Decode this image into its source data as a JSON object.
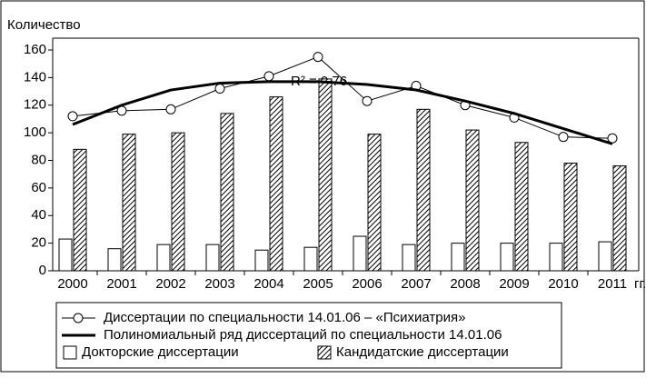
{
  "chart_data": {
    "type": "bar",
    "y_label": "Количество",
    "x_unit": "гг.",
    "annotation": "R² = 0.76",
    "categories": [
      "2000",
      "2001",
      "2002",
      "2003",
      "2004",
      "2005",
      "2006",
      "2007",
      "2008",
      "2009",
      "2010",
      "2011"
    ],
    "series": [
      {
        "name": "Диссертации по специальности 14.01.06 – «Психиатрия»",
        "type": "line",
        "marker": "circle",
        "color": "#000000",
        "values": [
          112,
          116,
          117,
          132,
          141,
          155,
          123,
          134,
          120,
          111,
          97,
          96
        ]
      },
      {
        "name": "Полиномиальный ряд диссертаций по специальности 14.01.06",
        "type": "line",
        "color": "#000000",
        "values": [
          106,
          120,
          131,
          136,
          137,
          137,
          135,
          131,
          123,
          114,
          103,
          92
        ]
      },
      {
        "name": "Докторские диссертации",
        "type": "bar",
        "color": "#ffffff",
        "values": [
          23,
          16,
          19,
          19,
          15,
          17,
          25,
          19,
          20,
          20,
          20,
          21
        ]
      },
      {
        "name": "Кандидатские диссертации",
        "type": "bar",
        "pattern": "hatch",
        "color": "#000000",
        "values": [
          88,
          99,
          100,
          114,
          126,
          139,
          99,
          117,
          102,
          93,
          78,
          76
        ]
      }
    ],
    "ylim": [
      0,
      160
    ],
    "yticks": [
      0,
      20,
      40,
      60,
      80,
      100,
      120,
      140,
      160
    ]
  }
}
